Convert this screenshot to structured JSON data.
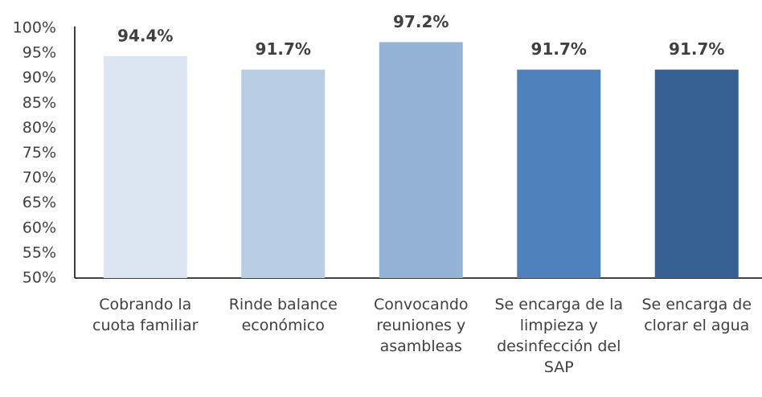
{
  "chart_data": {
    "type": "bar",
    "categories": [
      "Cobrando la cuota familiar",
      "Rinde balance económico",
      "Convocando reuniones y asambleas",
      "Se encarga de la limpieza y desinfección del SAP",
      "Se encarga de clorar el agua"
    ],
    "values": [
      94.4,
      91.7,
      97.2,
      91.7,
      91.7
    ],
    "value_labels": [
      "94.4%",
      "91.7%",
      "97.2%",
      "91.7%",
      "91.7%"
    ],
    "colors": [
      "#dce6f2",
      "#b9cde5",
      "#95b3d7",
      "#4f81bd",
      "#366092"
    ],
    "ylim": [
      50,
      100
    ],
    "yticks": [
      {
        "value": 50,
        "label": "50%"
      },
      {
        "value": 55,
        "label": "55%"
      },
      {
        "value": 60,
        "label": "60%"
      },
      {
        "value": 65,
        "label": "65%"
      },
      {
        "value": 70,
        "label": "70%"
      },
      {
        "value": 75,
        "label": "75%"
      },
      {
        "value": 80,
        "label": "80%"
      },
      {
        "value": 85,
        "label": "85%"
      },
      {
        "value": 90,
        "label": "90%"
      },
      {
        "value": 95,
        "label": "95%"
      },
      {
        "value": 100,
        "label": "100%"
      }
    ],
    "grid": false
  }
}
